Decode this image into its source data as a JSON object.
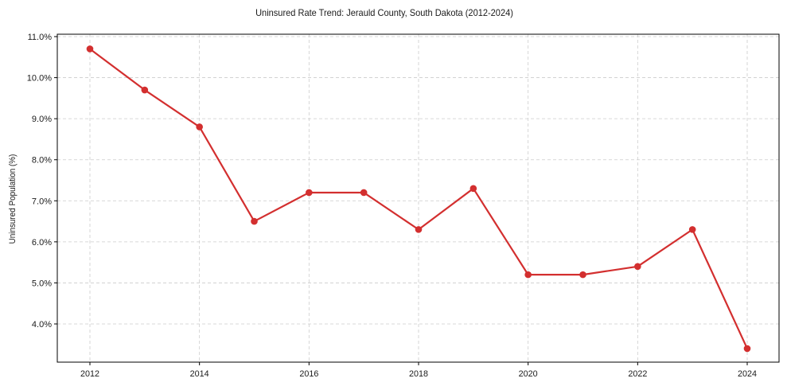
{
  "chart_data": {
    "type": "line",
    "title": "Uninsured Rate Trend: Jerauld County, South Dakota (2012-2024)",
    "xlabel": "",
    "ylabel": "Uninsured Population (%)",
    "x": [
      2012,
      2013,
      2014,
      2015,
      2016,
      2017,
      2018,
      2019,
      2020,
      2021,
      2022,
      2023,
      2024
    ],
    "series": [
      {
        "name": "Uninsured Rate",
        "values": [
          10.7,
          9.7,
          8.8,
          6.5,
          7.2,
          7.2,
          6.3,
          7.3,
          5.2,
          5.2,
          5.4,
          6.3,
          3.4
        ],
        "color": "#d32f2f",
        "marker": "circle"
      }
    ],
    "xticks": [
      "2012",
      "2014",
      "2016",
      "2018",
      "2020",
      "2022",
      "2024"
    ],
    "yticks": [
      "4.0%",
      "5.0%",
      "6.0%",
      "7.0%",
      "8.0%",
      "9.0%",
      "10.0%",
      "11.0%"
    ],
    "ylim": [
      3.07,
      11.06
    ],
    "xlim": [
      2011.4,
      2024.6
    ],
    "grid": true,
    "legend": null
  }
}
